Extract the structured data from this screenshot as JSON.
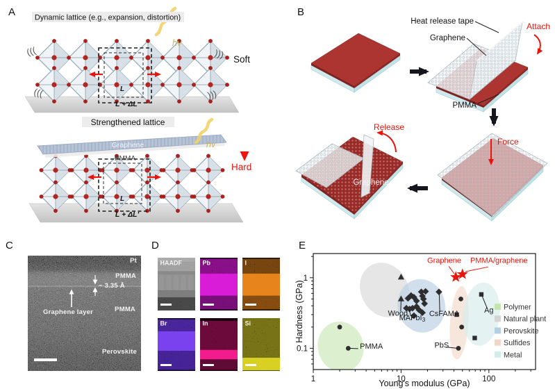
{
  "figure": {
    "background": "#ffffff",
    "panel_labels": {
      "a": "A",
      "b": "B",
      "c": "C",
      "d": "D",
      "e": "E"
    }
  },
  "panel_a": {
    "title_top": "Dynamic lattice (e.g., expansion, distortion)",
    "title_bottom": "Strengthened lattice",
    "soft": "Soft",
    "hard": "Hard",
    "hv": "hv",
    "cell_label": "L",
    "cell_expanded": "L + ΔL",
    "cell_expanded_prime": "L + ΔL'",
    "graphene_label": "Graphene",
    "pmma_label": "PMMA",
    "accent_red": "#e8150d"
  },
  "panel_b": {
    "heat_release_tape": "Heat release tape",
    "graphene": "Graphene",
    "pmma": "PMMA",
    "attach": "Attach",
    "force": "Force",
    "release": "Release",
    "graphene_film": "Graphene",
    "film_color": "#ac3431",
    "substrate_color": "#cfe9ec",
    "accent_red": "#e8150d"
  },
  "panel_c": {
    "pt": "Pt",
    "pmma_top": "PMMA",
    "interlayer_spacing": "~ 3.35 Å",
    "graphene_layer": "Graphene layer",
    "pmma_bottom": "PMMA",
    "perovskite": "Perovskite"
  },
  "panel_d": {
    "maps": [
      {
        "label": "HAADF",
        "style": "grey",
        "bg": "#0b0b0b",
        "bands": [
          {
            "y": 0.0,
            "h": 0.08,
            "color": "#d0d0d0"
          },
          {
            "y": 0.08,
            "h": 0.18,
            "color": "#bcbcbc"
          },
          {
            "y": 0.26,
            "h": 0.05,
            "color": "#8e8e8e"
          },
          {
            "y": 0.31,
            "h": 0.31,
            "color": "#9c9c9c"
          },
          {
            "y": 0.62,
            "h": 0.13,
            "color": "#757575"
          },
          {
            "y": 0.75,
            "h": 0.25,
            "color": "#0b0b0b"
          }
        ]
      },
      {
        "label": "Pb",
        "style": "speckle",
        "bg": "#0d000d",
        "bands": [
          {
            "y": 0.3,
            "h": 0.42,
            "color": "#d81cd8",
            "density": "dense"
          },
          {
            "y": 0.02,
            "h": 0.28,
            "color": "#b517b5",
            "density": "dim"
          },
          {
            "y": 0.72,
            "h": 0.26,
            "color": "#a014a0",
            "density": "dim"
          }
        ]
      },
      {
        "label": "I",
        "style": "speckle",
        "bg": "#150b02",
        "bands": [
          {
            "y": 0.3,
            "h": 0.42,
            "color": "#e8841c",
            "density": "dense"
          },
          {
            "y": 0.02,
            "h": 0.28,
            "color": "#9a5a12",
            "density": "dim"
          },
          {
            "y": 0.72,
            "h": 0.26,
            "color": "#b06614",
            "density": "dim"
          }
        ]
      },
      {
        "label": "Br",
        "style": "speckle",
        "bg": "#0b0616",
        "bands": [
          {
            "y": 0.25,
            "h": 0.37,
            "color": "#7a42ee",
            "density": "dense"
          },
          {
            "y": 0.02,
            "h": 0.23,
            "color": "#6030cc",
            "density": "dim"
          },
          {
            "y": 0.62,
            "h": 0.36,
            "color": "#5c2ec4",
            "density": "dim"
          }
        ]
      },
      {
        "label": "In",
        "style": "speckle",
        "bg": "#150209",
        "bands": [
          {
            "y": 0.6,
            "h": 0.18,
            "color": "#f21c8c",
            "density": "dense"
          },
          {
            "y": 0.05,
            "h": 0.55,
            "color": "#8c1050",
            "density": "dim"
          },
          {
            "y": 0.78,
            "h": 0.2,
            "color": "#7c0e46",
            "density": "dim"
          }
        ]
      },
      {
        "label": "Si",
        "style": "speckle",
        "bg": "#151408",
        "bands": [
          {
            "y": 0.75,
            "h": 0.24,
            "color": "#d8d024",
            "density": "dense"
          },
          {
            "y": 0.0,
            "h": 0.75,
            "color": "#9c961c",
            "density": "dim"
          }
        ]
      }
    ]
  },
  "chart_data": {
    "type": "scatter",
    "xlabel": "Young's modulus (GPa)",
    "ylabel": "Hardness (GPa)",
    "xscale": "log",
    "yscale": "log",
    "xlim": [
      1,
      340
    ],
    "ylim": [
      0.05,
      2.2
    ],
    "xticks": [
      1,
      10,
      100
    ],
    "yticks": [
      0.1,
      1
    ],
    "grid": false,
    "regions": [
      {
        "name": "Polymer",
        "color": "#cdeabc",
        "cx": 2.05,
        "cy": 0.105,
        "rx_dec": 0.26,
        "ry_dec": 0.36,
        "rot": -15
      },
      {
        "name": "Natural plant",
        "color": "#dcdcdc",
        "cx": 6.5,
        "cy": 0.67,
        "rx_dec": 0.27,
        "ry_dec": 0.4,
        "rot": -28
      },
      {
        "name": "Perovskite",
        "color": "#bcd2e2",
        "cx": 17,
        "cy": 0.4,
        "rx_dec": 0.27,
        "ry_dec": 0.38,
        "rot": -12
      },
      {
        "name": "Sulfides",
        "color": "#f2dbcd",
        "cx": 46,
        "cy": 0.23,
        "rx_dec": 0.105,
        "ry_dec": 0.52,
        "rot": 4
      },
      {
        "name": "Metal",
        "color": "#d8eeec",
        "cx": 82,
        "cy": 0.305,
        "rx_dec": 0.21,
        "ry_dec": 0.45,
        "rot": 6
      }
    ],
    "series": [
      {
        "name": "Polymer",
        "marker": "circle",
        "color": "#2e2e2e",
        "points": [
          [
            2.0,
            0.2
          ],
          [
            2.5,
            0.1
          ]
        ]
      },
      {
        "name": "Natural plant",
        "marker": "triangle",
        "color": "#2e2e2e",
        "points": [
          [
            10,
            1.02
          ],
          [
            10,
            0.5
          ]
        ]
      },
      {
        "name": "Perovskite",
        "marker": "diamond",
        "color": "#2e2e2e",
        "points": [
          [
            12,
            0.51
          ],
          [
            13,
            0.56
          ],
          [
            14,
            0.53
          ],
          [
            15,
            0.47
          ],
          [
            17,
            0.63
          ],
          [
            19,
            0.64
          ],
          [
            17.5,
            0.55
          ],
          [
            18,
            0.5
          ],
          [
            18.5,
            0.43
          ],
          [
            11.5,
            0.37
          ],
          [
            12.5,
            0.36
          ],
          [
            13.5,
            0.37
          ],
          [
            15,
            0.39
          ],
          [
            16,
            0.35
          ],
          [
            17.5,
            0.32
          ],
          [
            14,
            0.29
          ],
          [
            27,
            0.63
          ]
        ]
      },
      {
        "name": "Sulfides",
        "marker": "circle",
        "color": "#2e2e2e",
        "points": [
          [
            48,
            0.5
          ],
          [
            49,
            0.2
          ],
          [
            45,
            0.1
          ]
        ]
      },
      {
        "name": "Sulfides-square",
        "marker": "square",
        "color": "#2e2e2e",
        "points": [
          [
            43,
            0.3
          ]
        ]
      },
      {
        "name": "Metal",
        "marker": "square",
        "color": "#2e2e2e",
        "points": [
          [
            82,
            0.58
          ],
          [
            69,
            0.14
          ]
        ]
      },
      {
        "name": "Graphene stars",
        "marker": "star",
        "color": "#e8150d",
        "points": [
          [
            42,
            1.02
          ],
          [
            50,
            1.12
          ]
        ]
      }
    ],
    "annotations": [
      {
        "text": "PMMA",
        "x": 3.4,
        "y": 0.099,
        "anchor": "start",
        "color": "#1a1a1a",
        "leader": [
          [
            2.62,
            0.1
          ],
          [
            3.25,
            0.099
          ]
        ]
      },
      {
        "text": "Wood",
        "x": 9.2,
        "y": 0.29,
        "anchor": "middle",
        "color": "#1a1a1a",
        "leader": [
          [
            9.9,
            0.335
          ],
          [
            10,
            0.47
          ]
        ]
      },
      {
        "text": "MAPbI",
        "sub": "3",
        "x": 13.4,
        "y": 0.25,
        "anchor": "middle",
        "color": "#1a1a1a",
        "leader": [
          [
            12.9,
            0.285
          ],
          [
            12.4,
            0.35
          ]
        ]
      },
      {
        "text": "CsFAMA",
        "x": 31,
        "y": 0.285,
        "anchor": "middle",
        "color": "#1a1a1a",
        "leader": [
          [
            27.6,
            0.325
          ],
          [
            27.2,
            0.6
          ]
        ]
      },
      {
        "text": "PbS",
        "x": 29,
        "y": 0.102,
        "anchor": "middle",
        "color": "#1a1a1a",
        "leader": [
          [
            32.5,
            0.104
          ],
          [
            43.5,
            0.1
          ]
        ]
      },
      {
        "text": "Ag",
        "x": 100,
        "y": 0.32,
        "anchor": "middle",
        "color": "#1a1a1a",
        "leader": [
          [
            96,
            0.365
          ],
          [
            84,
            0.545
          ]
        ]
      },
      {
        "text": "Graphene",
        "x": 31,
        "y": 1.62,
        "anchor": "middle",
        "color": "#e8150d",
        "leader": [
          [
            35,
            1.45
          ],
          [
            40.5,
            1.13
          ]
        ]
      },
      {
        "text": "PMMA/graphene",
        "x": 130,
        "y": 1.62,
        "anchor": "middle",
        "color": "#e8150d",
        "leader": [
          [
            98,
            1.42
          ],
          [
            54,
            1.22
          ]
        ]
      }
    ],
    "legend": {
      "position": "inside-right",
      "entries": [
        {
          "label": "Polymer",
          "color": "#c3e5b0"
        },
        {
          "label": "Natural plant",
          "color": "#d4d4d4"
        },
        {
          "label": "Perovskite",
          "color": "#b4cee2"
        },
        {
          "label": "Sulfides",
          "color": "#f2d7c6"
        },
        {
          "label": "Metal",
          "color": "#d2ecea"
        }
      ]
    }
  }
}
